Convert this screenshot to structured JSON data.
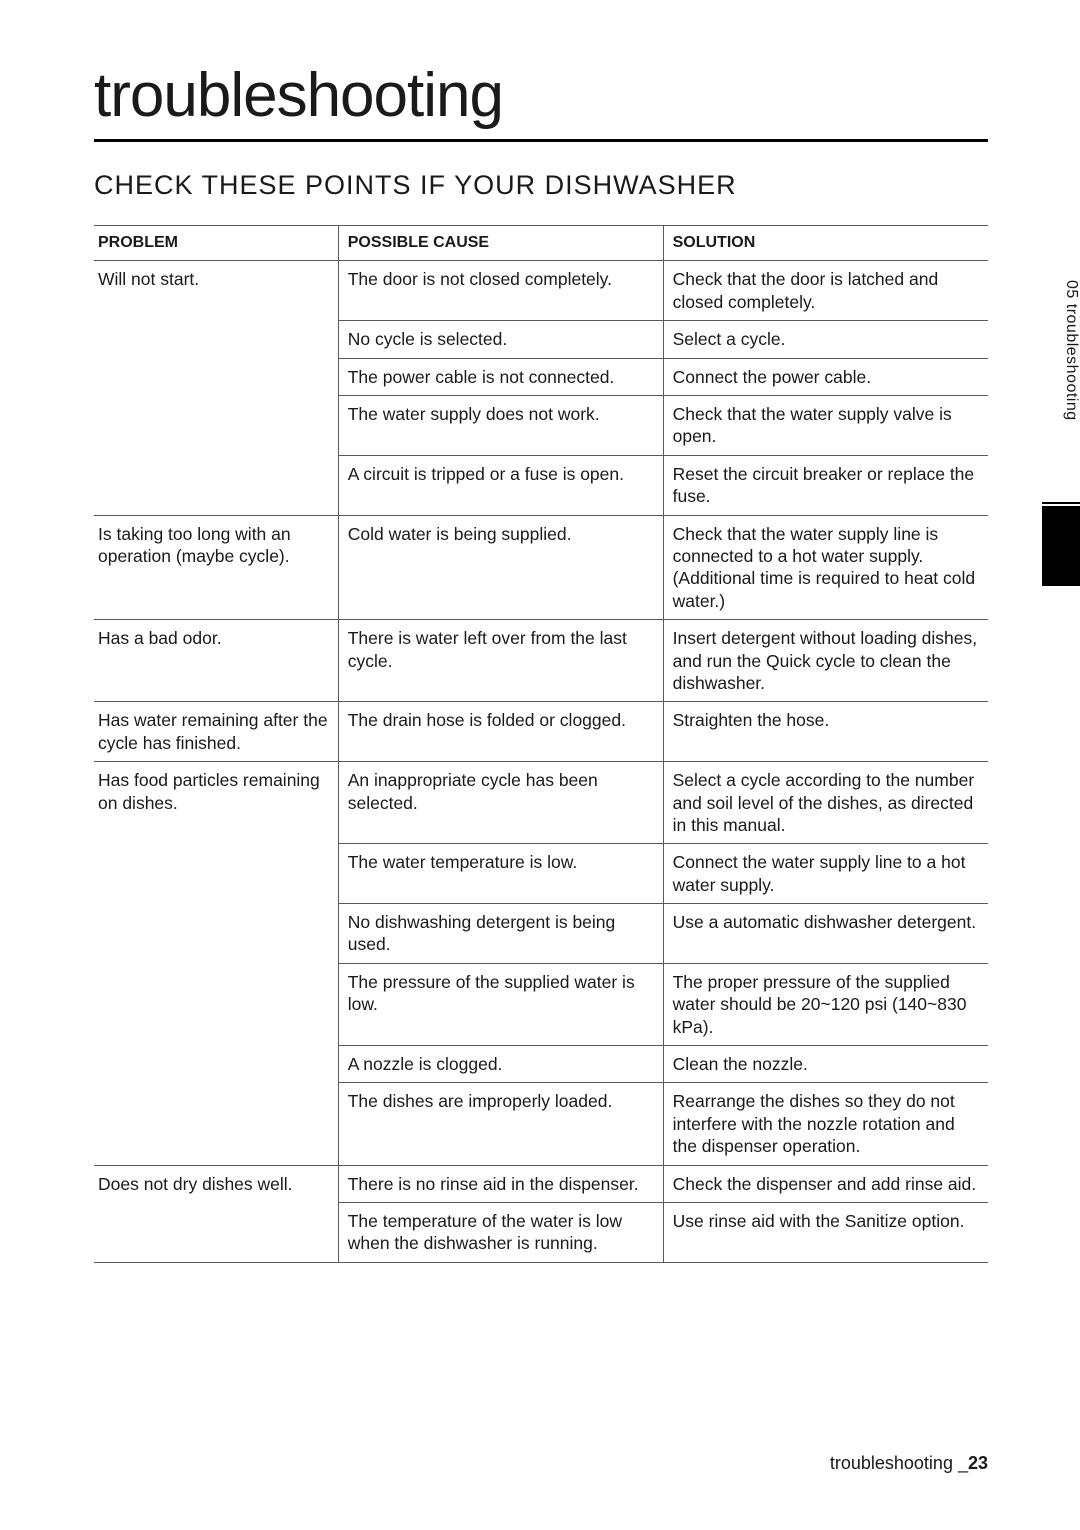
{
  "title": "troubleshooting",
  "subtitle": "CHECK THESE POINTS IF YOUR DISHWASHER",
  "side_tab": "05 troubleshooting",
  "footer_label": "troubleshooting _",
  "footer_page": "23",
  "headers": {
    "problem": "PROBLEM",
    "cause": "POSSIBLE CAUSE",
    "solution": "SOLUTION"
  },
  "rows": [
    {
      "problem": "Will not start.",
      "cause": "The door is not closed completely.",
      "solution": "Check that the door is latched and closed completely.",
      "span": 5
    },
    {
      "cause": "No cycle is selected.",
      "solution": "Select a cycle."
    },
    {
      "cause": "The power cable is not connected.",
      "solution": "Connect the power cable."
    },
    {
      "cause": "The water supply does not work.",
      "solution": "Check that the water supply valve is open."
    },
    {
      "cause": "A circuit is tripped or a fuse is open.",
      "solution": "Reset the circuit breaker or replace the fuse."
    },
    {
      "problem": "Is taking too long with an operation (maybe cycle).",
      "cause": "Cold water is being supplied.",
      "solution": "Check that the water supply line is connected to a hot water supply. (Additional time is required to heat cold water.)",
      "span": 1
    },
    {
      "problem": "Has a bad odor.",
      "cause": "There is water left over from the last cycle.",
      "solution": "Insert detergent without loading dishes, and run the Quick cycle to clean the dishwasher.",
      "span": 1
    },
    {
      "problem": "Has water remaining after the cycle has ﬁnished.",
      "cause": "The drain hose is folded or clogged.",
      "solution": "Straighten the hose.",
      "span": 1
    },
    {
      "problem": "Has food particles remaining on dishes.",
      "cause": "An inappropriate cycle has been selected.",
      "solution": "Select a cycle according to the number and soil level of the dishes, as directed in this manual.",
      "span": 6
    },
    {
      "cause": "The water temperature is low.",
      "solution": "Connect the water supply line to a hot water supply."
    },
    {
      "cause": "No dishwashing detergent is being used.",
      "solution": "Use a automatic dishwasher detergent."
    },
    {
      "cause": "The pressure of the supplied water is low.",
      "solution": "The proper pressure of the supplied water should be 20~120 psi (140~830 kPa)."
    },
    {
      "cause": "A nozzle is clogged.",
      "solution": "Clean the nozzle."
    },
    {
      "cause": "The dishes are improperly loaded.",
      "solution": "Rearrange the dishes so they do not interfere with the nozzle rotation and the dispenser operation."
    },
    {
      "problem": "Does not dry dishes well.",
      "cause": "There is no rinse aid in the dispenser.",
      "solution": "Check the dispenser and add rinse aid.",
      "span": 2
    },
    {
      "cause": "The temperature of the water is low when the dishwasher is running.",
      "solution": "Use rinse aid with the Sanitize option."
    }
  ]
}
